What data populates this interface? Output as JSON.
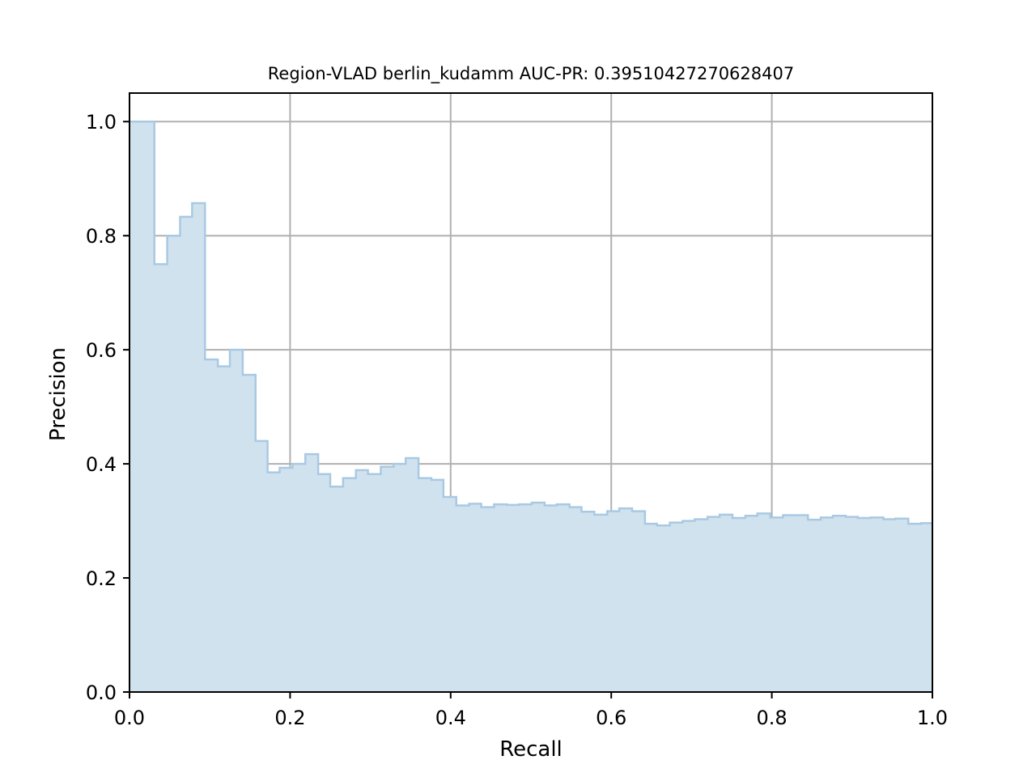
{
  "chart_data": {
    "type": "area",
    "title": "Region-VLAD berlin_kudamm AUC-PR: 0.39510427270628407",
    "xlabel": "Recall",
    "ylabel": "Precision",
    "xlim": [
      0,
      1
    ],
    "ylim": [
      0,
      1.05
    ],
    "xticks": [
      0,
      0.2,
      0.4,
      0.6,
      0.8,
      1
    ],
    "xtick_labels": [
      "0.0",
      "0.2",
      "0.4",
      "0.6",
      "0.8",
      "1.0"
    ],
    "yticks": [
      0,
      0.2,
      0.4,
      0.6,
      0.8,
      1
    ],
    "ytick_labels": [
      "0.0",
      "0.2",
      "0.4",
      "0.6",
      "0.8",
      "1.0"
    ],
    "grid": true,
    "step": "post",
    "fill_color": "#d1e2ef",
    "line_color": "#a9c9e3",
    "series": [
      {
        "x": [
          0,
          0.031,
          0.047,
          0.063,
          0.078,
          0.094,
          0.11,
          0.125,
          0.141,
          0.157,
          0.172,
          0.187,
          0.203,
          0.219,
          0.235,
          0.25,
          0.266,
          0.282,
          0.297,
          0.313,
          0.329,
          0.344,
          0.36,
          0.376,
          0.391,
          0.407,
          0.423,
          0.438,
          0.454,
          0.47,
          0.485,
          0.501,
          0.517,
          0.532,
          0.548,
          0.563,
          0.579,
          0.595,
          0.61,
          0.626,
          0.642,
          0.657,
          0.673,
          0.689,
          0.704,
          0.72,
          0.735,
          0.751,
          0.767,
          0.782,
          0.798,
          0.814,
          0.829,
          0.845,
          0.861,
          0.876,
          0.892,
          0.907,
          0.923,
          0.939,
          0.954,
          0.97,
          0.986,
          1.0
        ],
        "y": [
          1.0,
          0.75,
          0.8,
          0.833,
          0.857,
          0.583,
          0.571,
          0.6,
          0.556,
          0.44,
          0.385,
          0.393,
          0.4,
          0.417,
          0.382,
          0.36,
          0.375,
          0.389,
          0.382,
          0.395,
          0.4,
          0.41,
          0.375,
          0.372,
          0.342,
          0.327,
          0.33,
          0.324,
          0.329,
          0.328,
          0.329,
          0.332,
          0.327,
          0.329,
          0.324,
          0.316,
          0.311,
          0.317,
          0.322,
          0.317,
          0.295,
          0.292,
          0.297,
          0.3,
          0.303,
          0.307,
          0.311,
          0.305,
          0.309,
          0.313,
          0.306,
          0.31,
          0.31,
          0.302,
          0.306,
          0.309,
          0.307,
          0.305,
          0.306,
          0.303,
          0.304,
          0.295,
          0.296,
          0.296
        ]
      }
    ]
  }
}
